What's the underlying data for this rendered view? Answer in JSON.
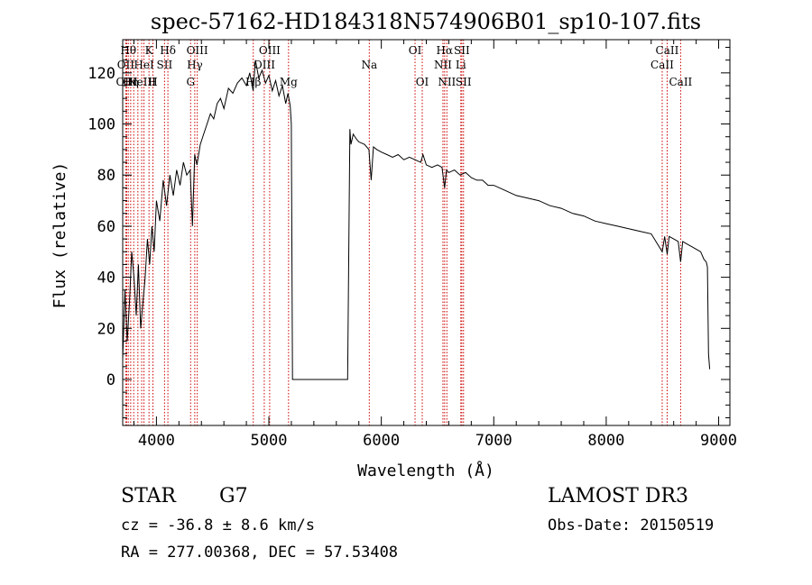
{
  "title": "spec-57162-HD184318N574906B01_sp10-107.fits",
  "info": {
    "class": "STAR",
    "subclass": "G7",
    "survey": "LAMOST DR3",
    "cz": "cz = -36.8 ± 8.6 km/s",
    "obs_date": "Obs-Date: 20150519",
    "radec": "RA = 277.00368, DEC =  57.53408"
  },
  "chart_data": {
    "type": "line",
    "title": "spec-57162-HD184318N574906B01_sp10-107.fits",
    "xlabel": "Wavelength (Å)",
    "ylabel": "Flux (relative)",
    "xlim": [
      3700,
      9100
    ],
    "ylim": [
      -18,
      133
    ],
    "xticks": [
      4000,
      5000,
      6000,
      7000,
      8000,
      9000
    ],
    "yticks": [
      0,
      20,
      40,
      60,
      80,
      100,
      120
    ],
    "grid": false,
    "line_color": "#000000",
    "marker_color": "#cc0000",
    "series": [
      {
        "x": [
          3700,
          3720,
          3740,
          3760,
          3780,
          3800,
          3820,
          3840,
          3860,
          3880,
          3900,
          3920,
          3940,
          3960,
          3980,
          4000,
          4030,
          4060,
          4090,
          4120,
          4150,
          4180,
          4210,
          4240,
          4270,
          4300,
          4320,
          4340,
          4360,
          4390,
          4420,
          4450,
          4480,
          4510,
          4540,
          4570,
          4600,
          4640,
          4680,
          4720,
          4760,
          4800,
          4830,
          4860,
          4880,
          4910,
          4940,
          4970,
          5000,
          5030,
          5060,
          5090,
          5120,
          5150,
          5170,
          5190,
          5200,
          5210,
          5230,
          5300,
          5400,
          5500,
          5600,
          5700,
          5720,
          5730,
          5750,
          5780,
          5800,
          5850,
          5890,
          5910,
          5930,
          5960,
          6000,
          6050,
          6100,
          6150,
          6200,
          6250,
          6300,
          6350,
          6370,
          6400,
          6450,
          6500,
          6540,
          6563,
          6580,
          6600,
          6650,
          6700,
          6750,
          6800,
          6850,
          6900,
          6950,
          7000,
          7100,
          7200,
          7300,
          7400,
          7500,
          7600,
          7700,
          7800,
          7900,
          8000,
          8100,
          8200,
          8300,
          8400,
          8498,
          8520,
          8542,
          8560,
          8600,
          8640,
          8662,
          8680,
          8720,
          8760,
          8800,
          8840,
          8870,
          8890,
          8900,
          8910,
          8920
        ],
        "y": [
          8,
          35,
          15,
          30,
          50,
          40,
          25,
          45,
          20,
          30,
          40,
          55,
          45,
          60,
          50,
          70,
          62,
          78,
          68,
          80,
          72,
          82,
          76,
          85,
          80,
          82,
          60,
          88,
          84,
          92,
          96,
          100,
          104,
          102,
          108,
          110,
          106,
          114,
          112,
          116,
          118,
          115,
          120,
          113,
          125,
          118,
          121,
          116,
          119,
          113,
          117,
          111,
          115,
          108,
          112,
          107,
          100,
          0,
          0,
          0,
          0,
          0,
          0,
          0,
          98,
          92,
          96,
          94,
          93,
          92,
          90,
          78,
          91,
          90,
          89,
          88,
          87,
          88,
          86,
          87,
          86,
          85,
          88,
          84,
          83,
          84,
          83,
          75,
          82,
          81,
          82,
          80,
          81,
          79,
          78,
          78,
          76,
          76,
          74,
          72,
          71,
          70,
          68,
          67,
          65,
          64,
          62,
          61,
          60,
          59,
          58,
          57,
          50,
          56,
          49,
          56,
          55,
          54,
          46,
          54,
          53,
          52,
          51,
          50,
          47,
          46,
          44,
          10,
          4
        ]
      }
    ],
    "lines": [
      {
        "wl": 3750,
        "label": "Hθ",
        "row": 1
      },
      {
        "wl": 3727,
        "label": "OII",
        "row": 2
      },
      {
        "wl": 3736,
        "label": "OIII",
        "row": 3
      },
      {
        "wl": 3771,
        "label": "Hη",
        "row": 3
      },
      {
        "wl": 3798,
        "label": "",
        "row": 0
      },
      {
        "wl": 3835,
        "label": "",
        "row": 0
      },
      {
        "wl": 3869,
        "label": "NeIII",
        "row": 3
      },
      {
        "wl": 3889,
        "label": "HeI",
        "row": 2
      },
      {
        "wl": 3934,
        "label": "K",
        "row": 1
      },
      {
        "wl": 3969,
        "label": "H",
        "row": 3
      },
      {
        "wl": 4072,
        "label": "SII",
        "row": 2
      },
      {
        "wl": 4102,
        "label": "Hδ",
        "row": 1
      },
      {
        "wl": 4304,
        "label": "G",
        "row": 3
      },
      {
        "wl": 4341,
        "label": "Hγ",
        "row": 2
      },
      {
        "wl": 4363,
        "label": "OIII",
        "row": 1
      },
      {
        "wl": 4861,
        "label": "Hβ",
        "row": 3
      },
      {
        "wl": 4959,
        "label": "OIII",
        "row": 2
      },
      {
        "wl": 5007,
        "label": "OIII",
        "row": 1
      },
      {
        "wl": 5175,
        "label": "Mg",
        "row": 3
      },
      {
        "wl": 5893,
        "label": "Na",
        "row": 2
      },
      {
        "wl": 6300,
        "label": "OI",
        "row": 1
      },
      {
        "wl": 6364,
        "label": "OI",
        "row": 3
      },
      {
        "wl": 6548,
        "label": "NII",
        "row": 2
      },
      {
        "wl": 6563,
        "label": "Hα",
        "row": 1
      },
      {
        "wl": 6583,
        "label": "NII",
        "row": 3
      },
      {
        "wl": 6707,
        "label": "Li",
        "row": 2
      },
      {
        "wl": 6716,
        "label": "SII",
        "row": 1
      },
      {
        "wl": 6731,
        "label": "SII",
        "row": 3
      },
      {
        "wl": 8498,
        "label": "CaII",
        "row": 2
      },
      {
        "wl": 8542,
        "label": "CaII",
        "row": 1
      },
      {
        "wl": 8662,
        "label": "CaII",
        "row": 3
      }
    ]
  }
}
